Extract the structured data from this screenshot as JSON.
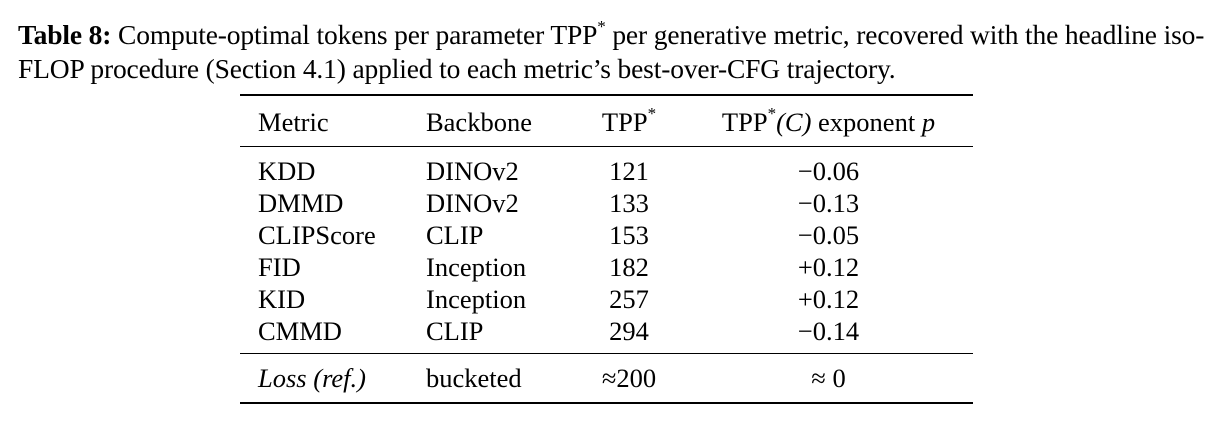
{
  "caption": {
    "label": "Table 8:",
    "text_before_tpp": " Compute-optimal tokens per parameter ",
    "tpp_symbol": "TPP",
    "tpp_sup": "*",
    "text_line_rest": " per generative metric, recovered with the headline iso-FLOP procedure (Section 4.1) applied to each metric’s best-over-CFG trajectory."
  },
  "table": {
    "headers": {
      "metric": "Metric",
      "backbone": "Backbone",
      "tpp": "TPP",
      "tpp_sup": "*",
      "exp_prefix": "TPP",
      "exp_sup": "*",
      "exp_arg": "(C)",
      "exp_label": " exponent ",
      "exp_var": "p"
    },
    "rows": [
      {
        "metric": "KDD",
        "backbone": "DINOv2",
        "tpp": "121",
        "exponent": "−0.06"
      },
      {
        "metric": "DMMD",
        "backbone": "DINOv2",
        "tpp": "133",
        "exponent": "−0.13"
      },
      {
        "metric": "CLIPScore",
        "backbone": "CLIP",
        "tpp": "153",
        "exponent": "−0.05"
      },
      {
        "metric": "FID",
        "backbone": "Inception",
        "tpp": "182",
        "exponent": "+0.12"
      },
      {
        "metric": "KID",
        "backbone": "Inception",
        "tpp": "257",
        "exponent": "+0.12"
      },
      {
        "metric": "CMMD",
        "backbone": "CLIP",
        "tpp": "294",
        "exponent": "−0.14"
      }
    ],
    "reference": {
      "metric": "Loss (ref.)",
      "backbone": "bucketed",
      "tpp": "≈200",
      "exponent": "≈ 0"
    }
  }
}
